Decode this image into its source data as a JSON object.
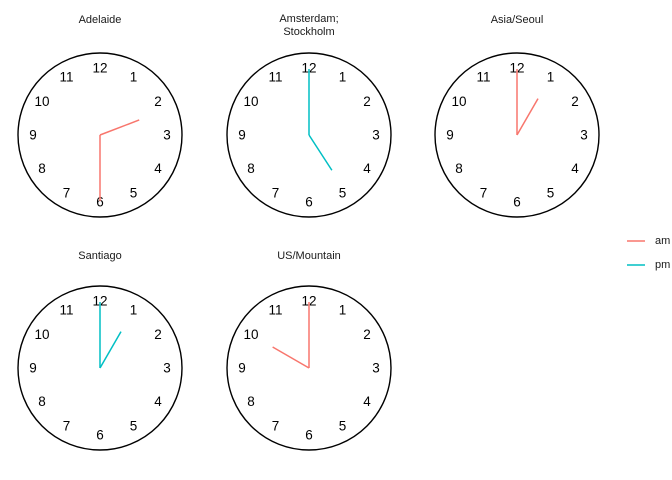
{
  "chart_data": {
    "type": "clock",
    "tick_labels": [
      "12",
      "1",
      "2",
      "3",
      "4",
      "5",
      "6",
      "7",
      "8",
      "9",
      "10",
      "11"
    ],
    "colors": {
      "am": "#F8766D",
      "pm": "#00BFC4"
    },
    "legend": {
      "placement": "right",
      "entries": [
        {
          "key": "am",
          "label": "am"
        },
        {
          "key": "pm",
          "label": "pm"
        }
      ]
    },
    "panels": [
      {
        "title": [
          "Adelaide"
        ],
        "hour": 2.3,
        "minute": 30,
        "period": "am"
      },
      {
        "title": [
          "Amsterdam;",
          "Stockholm"
        ],
        "hour": 4.9,
        "minute": 0,
        "period": "pm"
      },
      {
        "title": [
          "Asia/Seoul"
        ],
        "hour": 1,
        "minute": 0,
        "period": "am"
      },
      {
        "title": [
          "Santiago"
        ],
        "hour": 1,
        "minute": 0,
        "period": "pm"
      },
      {
        "title": [
          "US/Mountain"
        ],
        "hour": 10,
        "minute": 0,
        "period": "am"
      }
    ]
  }
}
